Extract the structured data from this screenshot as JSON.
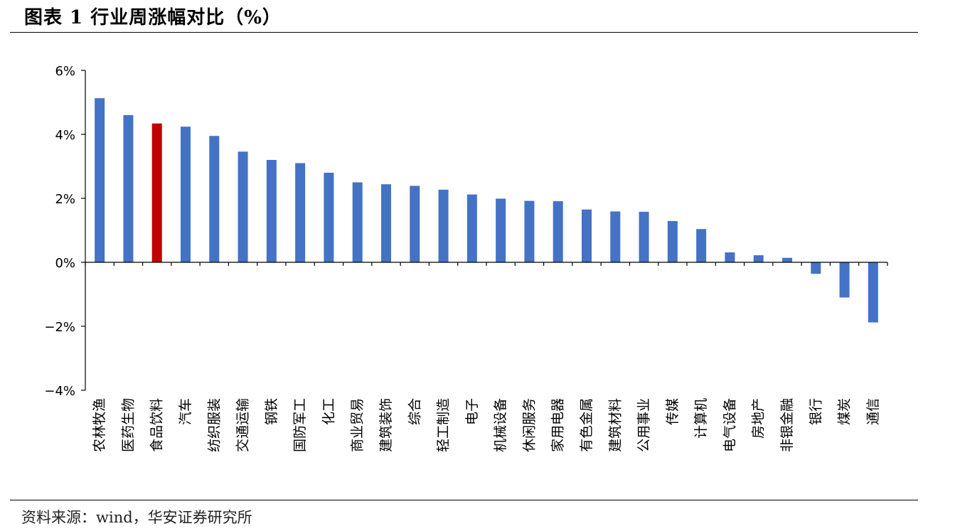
{
  "header": {
    "title": "图表 1 行业周涨幅对比（%）"
  },
  "footer": {
    "source": "资料来源：wind，华安证券研究所"
  },
  "chart_data": {
    "type": "bar",
    "title": "图表 1 行业周涨幅对比（%）",
    "xlabel": "",
    "ylabel": "",
    "ylim": [
      -4,
      6
    ],
    "yticks": [
      6,
      4,
      2,
      0,
      -2,
      -4
    ],
    "ytick_labels": [
      "6%",
      "4%",
      "2%",
      "0%",
      "−2%",
      "−4%"
    ],
    "grid": false,
    "legend": "none",
    "colors": {
      "default": "#4472C4",
      "highlight": "#C00000"
    },
    "highlight_category": "食品饮料",
    "categories": [
      "农林牧渔",
      "医药生物",
      "食品饮料",
      "汽车",
      "纺织服装",
      "交通运输",
      "钢铁",
      "国防军工",
      "化工",
      "商业贸易",
      "建筑装饰",
      "综合",
      "轻工制造",
      "电子",
      "机械设备",
      "休闲服务",
      "家用电器",
      "有色金属",
      "建筑材料",
      "公用事业",
      "传媒",
      "计算机",
      "电气设备",
      "房地产",
      "非银金融",
      "银行",
      "煤炭",
      "通信"
    ],
    "values": [
      5.13,
      4.6,
      4.34,
      4.24,
      3.95,
      3.46,
      3.2,
      3.1,
      2.8,
      2.5,
      2.44,
      2.39,
      2.27,
      2.12,
      1.99,
      1.92,
      1.91,
      1.65,
      1.59,
      1.58,
      1.29,
      1.04,
      0.31,
      0.22,
      0.14,
      -0.36,
      -1.1,
      -1.88
    ]
  }
}
